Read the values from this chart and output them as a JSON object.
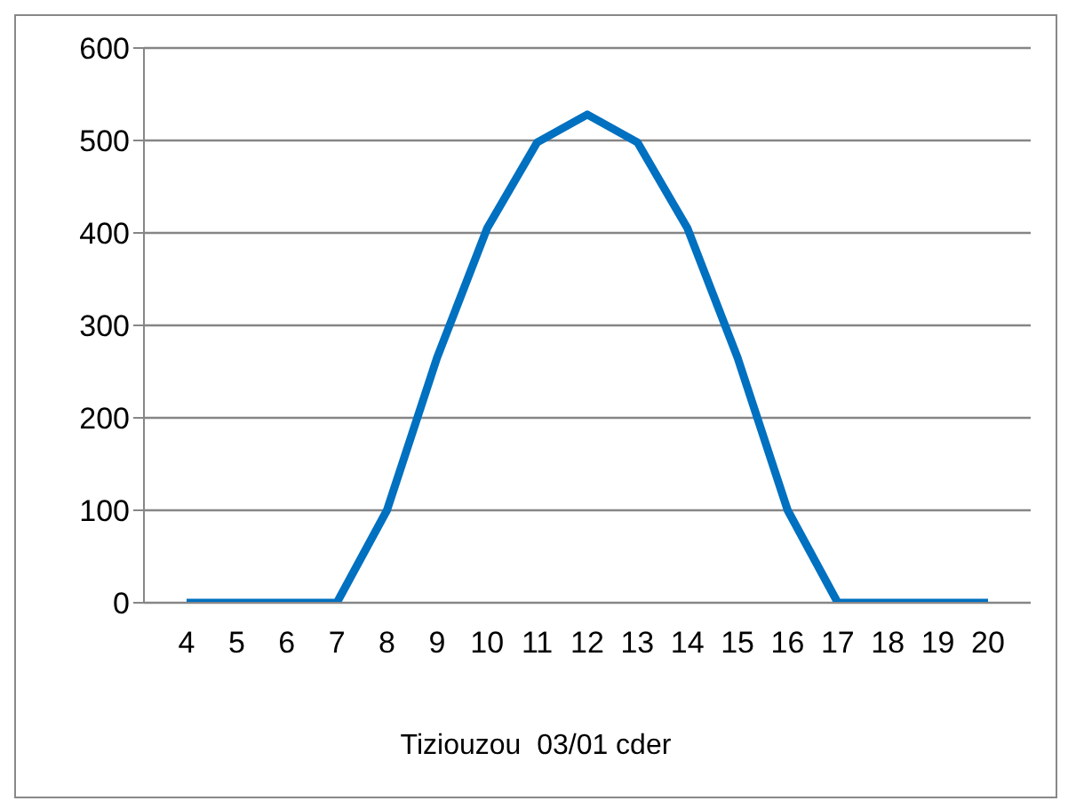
{
  "chart_data": {
    "type": "line",
    "xlabel": "Tiziouzou  03/01 cder",
    "categories": [
      "4",
      "5",
      "6",
      "7",
      "8",
      "9",
      "10",
      "11",
      "12",
      "13",
      "14",
      "15",
      "16",
      "17",
      "18",
      "19",
      "20"
    ],
    "series": [
      {
        "color": "#0070c0",
        "values": [
          0,
          0,
          0,
          0,
          100,
          265,
          405,
          498,
          528,
          498,
          405,
          265,
          100,
          0,
          0,
          0,
          0
        ]
      }
    ],
    "ylim": [
      0,
      600
    ],
    "yticks": [
      0,
      100,
      200,
      300,
      400,
      500,
      600
    ],
    "grid": "y",
    "legend": false,
    "marker": "none",
    "line_style": "solid"
  }
}
